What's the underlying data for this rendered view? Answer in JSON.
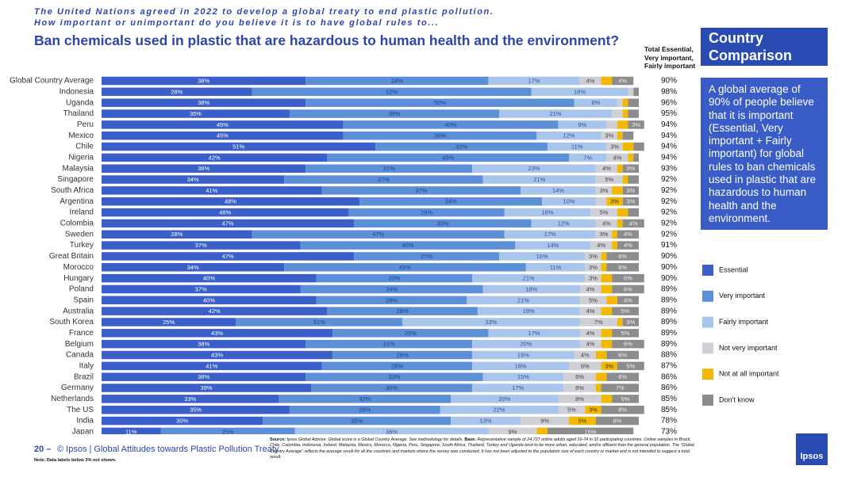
{
  "header": {
    "subtitle_lines": [
      "The United Nations agreed in 2022 to develop a global treaty to end plastic pollution.",
      "How important or unimportant do you believe it is to have global rules to..."
    ]
  },
  "chart_data": {
    "type": "stacked_barh",
    "title": "Ban chemicals used in plastic that are hazardous to human health and the environment?",
    "xlim": [
      0,
      100
    ],
    "categories": [
      "Global Country Average",
      "Indonesia",
      "Uganda",
      "Thailand",
      "Peru",
      "Mexico",
      "Chile",
      "Nigeria",
      "Malaysia",
      "Singapore",
      "South Africa",
      "Argentina",
      "Ireland",
      "Colombia",
      "Sweden",
      "Turkey",
      "Great Britain",
      "Morocco",
      "Hungary",
      "Poland",
      "Spain",
      "Australia",
      "South Korea",
      "France",
      "Belgium",
      "Canada",
      "Italy",
      "Brazil",
      "Germany",
      "Netherlands",
      "The US",
      "India",
      "Japan"
    ],
    "series": [
      {
        "name": "Essential",
        "color": "#3a5fc8",
        "label_color": "#ffffff",
        "values": [
          38,
          28,
          38,
          35,
          45,
          45,
          51,
          42,
          38,
          34,
          41,
          48,
          46,
          47,
          28,
          37,
          47,
          34,
          40,
          37,
          40,
          42,
          25,
          43,
          38,
          43,
          41,
          38,
          39,
          33,
          35,
          30,
          11
        ],
        "value_labels": [
          "38%",
          "28%",
          "38%",
          "35%",
          "45%",
          "45%",
          "51%",
          "42%",
          "38%",
          "34%",
          "41%",
          "48%",
          "46%",
          "47%",
          "28%",
          "37%",
          "47%",
          "34%",
          "40%",
          "37%",
          "40%",
          "42%",
          "25%",
          "43%",
          "38%",
          "43%",
          "41%",
          "38%",
          "39%",
          "33%",
          "35%",
          "30%",
          "11%"
        ]
      },
      {
        "name": "Very important",
        "color": "#5b8fd6",
        "label_color": "#26408f",
        "values": [
          34,
          52,
          50,
          39,
          40,
          36,
          32,
          45,
          31,
          37,
          37,
          34,
          29,
          33,
          47,
          40,
          27,
          45,
          29,
          34,
          28,
          28,
          31,
          29,
          31,
          26,
          28,
          33,
          30,
          32,
          28,
          35,
          25
        ],
        "value_labels": [
          "34%",
          "52%",
          "50%",
          "39%",
          "40%",
          "36%",
          "32%",
          "45%",
          "31%",
          "37%",
          "37%",
          "34%",
          "29%",
          "33%",
          "47%",
          "40%",
          "27%",
          "45%",
          "29%",
          "34%",
          "28%",
          "28%",
          "31%",
          "29%",
          "31%",
          "26%",
          "28%",
          "33%",
          "30%",
          "32%",
          "28%",
          "35%",
          "25%"
        ]
      },
      {
        "name": "Fairly important",
        "color": "#a8c5ec",
        "label_color": "#3a4f8f",
        "values": [
          17,
          18,
          8,
          21,
          9,
          12,
          11,
          7,
          23,
          21,
          14,
          10,
          16,
          12,
          17,
          14,
          16,
          11,
          21,
          18,
          21,
          19,
          33,
          17,
          20,
          19,
          18,
          15,
          17,
          20,
          22,
          13,
          36
        ],
        "value_labels": [
          "17%",
          "18%",
          "8%",
          "21%",
          "9%",
          "12%",
          "11%",
          "7%",
          "23%",
          "21%",
          "14%",
          "10%",
          "16%",
          "12%",
          "17%",
          "14%",
          "16%",
          "11%",
          "21%",
          "18%",
          "21%",
          "19%",
          "33%",
          "17%",
          "20%",
          "19%",
          "18%",
          "15%",
          "17%",
          "20%",
          "22%",
          "13%",
          "36%"
        ]
      },
      {
        "name": "Not very important",
        "color": "#cfcfd6",
        "label_color": "#444444",
        "values": [
          4,
          1,
          1,
          2,
          2,
          3,
          3,
          4,
          4,
          5,
          3,
          2,
          5,
          4,
          3,
          4,
          3,
          3,
          3,
          4,
          5,
          4,
          7,
          4,
          4,
          4,
          6,
          6,
          6,
          8,
          5,
          9,
          9
        ],
        "value_labels": [
          "4%",
          null,
          null,
          null,
          null,
          "3%",
          "3%",
          "4%",
          "4%",
          "5%",
          "3%",
          null,
          "5%",
          "4%",
          "3%",
          "4%",
          "3%",
          "3%",
          "3%",
          "4%",
          "5%",
          "4%",
          "7%",
          "4%",
          "4%",
          "4%",
          "6%",
          "6%",
          "6%",
          "8%",
          "5%",
          "9%",
          "9%"
        ]
      },
      {
        "name": "Not at all important",
        "color": "#f5b800",
        "label_color": "#333333",
        "values": [
          2,
          0,
          1,
          1,
          2,
          1,
          2,
          1,
          1,
          1,
          2,
          3,
          2,
          1,
          1,
          1,
          1,
          1,
          2,
          2,
          2,
          2,
          1,
          2,
          2,
          2,
          3,
          2,
          1,
          2,
          3,
          5,
          2
        ],
        "value_labels": [
          null,
          null,
          null,
          null,
          null,
          null,
          null,
          null,
          null,
          null,
          null,
          "3%",
          null,
          null,
          null,
          null,
          null,
          null,
          null,
          null,
          null,
          null,
          null,
          null,
          null,
          null,
          "3%",
          null,
          null,
          null,
          "3%",
          "5%",
          null
        ]
      },
      {
        "name": "Don’t know",
        "color": "#8c8c8c",
        "label_color": "#f0f0f0",
        "values": [
          4,
          1,
          2,
          2,
          3,
          2,
          2,
          1,
          3,
          2,
          3,
          3,
          2,
          4,
          4,
          4,
          6,
          6,
          6,
          6,
          4,
          5,
          3,
          5,
          6,
          6,
          5,
          6,
          7,
          5,
          8,
          8,
          16
        ],
        "value_labels": [
          "4%",
          null,
          null,
          null,
          "3%",
          null,
          null,
          null,
          "3%",
          null,
          "3%",
          "3%",
          null,
          "4%",
          "4%",
          "4%",
          "6%",
          "6%",
          "6%",
          "6%",
          "4%",
          "5%",
          "3%",
          "5%",
          "6%",
          "6%",
          "5%",
          "6%",
          "7%",
          "5%",
          "8%",
          "8%",
          "16%"
        ]
      }
    ],
    "totals": {
      "name_lines": [
        "Total Essential,",
        "Very important,",
        "Fairly important"
      ],
      "values": [
        90,
        98,
        96,
        95,
        94,
        94,
        94,
        94,
        93,
        92,
        92,
        92,
        92,
        92,
        92,
        91,
        90,
        90,
        90,
        89,
        89,
        89,
        89,
        89,
        89,
        88,
        87,
        86,
        86,
        85,
        85,
        78,
        73
      ],
      "value_labels": [
        "90%",
        "98%",
        "96%",
        "95%",
        "94%",
        "94%",
        "94%",
        "94%",
        "93%",
        "92%",
        "92%",
        "92%",
        "92%",
        "92%",
        "92%",
        "91%",
        "90%",
        "90%",
        "90%",
        "89%",
        "89%",
        "89%",
        "89%",
        "89%",
        "89%",
        "88%",
        "87%",
        "86%",
        "86%",
        "85%",
        "85%",
        "78%",
        "73%"
      ]
    },
    "legend": "right"
  },
  "sidebar": {
    "title": "Country Comparison",
    "text": "A global average of 90% of people believe that it is important (Essential, Very important + Fairly important) for global rules to ban chemicals used in plastic that are hazardous to human health and the environment."
  },
  "footer": {
    "page": "20 –",
    "title": "© Ipsos | Global Attitudes towards Plastic Pollution Treaty",
    "note": "Note: Data labels below 3% not shown.",
    "source_label": "Source:",
    "source_text": "Ipsos Global Advisor. Global score is a Global Country Average. See methodology for details.",
    "base_label": "Base:",
    "base_text": "Representative sample of 24,727 online adults aged 16-74 in 32 participating countries. Online samples in Brazil, Chile, Colombia, Indonesia, Ireland, Malaysia, Mexico, Morocco, Nigeria, Peru, Singapore, South Africa, Thailand, Turkey and Uganda tend to be more urban, educated, and/or affluent than the general population. The “Global Country Average” reflects the average result for all the countries and markets where the survey was conducted. It has not been adjusted to the population size of each country or market and is not intended to suggest a total result.",
    "logo": "Ipsos"
  }
}
